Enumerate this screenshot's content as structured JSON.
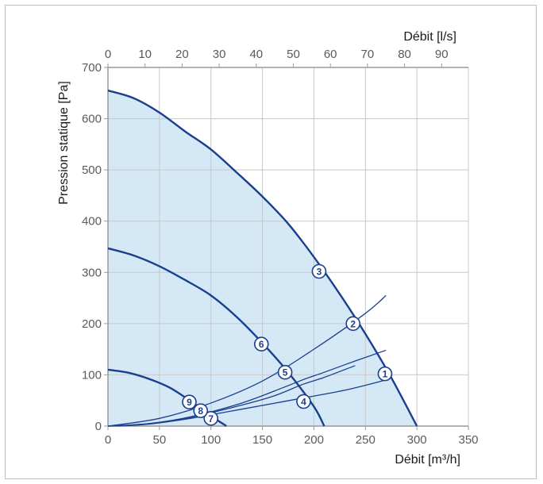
{
  "chart_data": {
    "type": "line",
    "title": "",
    "xlabel": "Débit [m³/h]",
    "x2label": "Débit [l/s]",
    "ylabel": "Pression statique [Pa]",
    "xlim": [
      0,
      350
    ],
    "x2lim": [
      0,
      97.222
    ],
    "ylim": [
      0,
      700
    ],
    "x_ticks": [
      "0",
      "50",
      "100",
      "150",
      "200",
      "250",
      "300",
      "350"
    ],
    "x_tick_values": [
      0,
      50,
      100,
      150,
      200,
      250,
      300,
      350
    ],
    "x2_ticks": [
      "0",
      "10",
      "20",
      "30",
      "40",
      "50",
      "60",
      "70",
      "80",
      "90"
    ],
    "x2_tick_values": [
      0,
      10,
      20,
      30,
      40,
      50,
      60,
      70,
      80,
      90
    ],
    "y_ticks": [
      "0",
      "100",
      "200",
      "300",
      "400",
      "500",
      "600",
      "700"
    ],
    "y_tick_values": [
      0,
      100,
      200,
      300,
      400,
      500,
      600,
      700
    ],
    "grid": true,
    "colors": {
      "curve": "#1b3f8f",
      "fill": "#d4e9f5",
      "grid": "#c8c8c8",
      "axis": "#9a9a9a"
    },
    "fan_curves": [
      {
        "points": [
          [
            0,
            655
          ],
          [
            25,
            640
          ],
          [
            50,
            612
          ],
          [
            75,
            575
          ],
          [
            100,
            540
          ],
          [
            125,
            495
          ],
          [
            150,
            448
          ],
          [
            175,
            395
          ],
          [
            200,
            330
          ],
          [
            225,
            258
          ],
          [
            250,
            180
          ],
          [
            275,
            95
          ],
          [
            300,
            0
          ]
        ]
      },
      {
        "points": [
          [
            0,
            347
          ],
          [
            25,
            333
          ],
          [
            50,
            312
          ],
          [
            75,
            285
          ],
          [
            100,
            255
          ],
          [
            125,
            213
          ],
          [
            150,
            162
          ],
          [
            175,
            105
          ],
          [
            200,
            38
          ],
          [
            210,
            0
          ]
        ]
      },
      {
        "points": [
          [
            0,
            110
          ],
          [
            20,
            104
          ],
          [
            40,
            92
          ],
          [
            60,
            75
          ],
          [
            80,
            49
          ],
          [
            100,
            20
          ],
          [
            115,
            0
          ]
        ]
      }
    ],
    "system_curves": [
      {
        "points": [
          [
            0,
            0
          ],
          [
            50,
            15
          ],
          [
            100,
            45
          ],
          [
            150,
            88
          ],
          [
            200,
            150
          ],
          [
            250,
            220
          ],
          [
            270,
            255
          ]
        ]
      },
      {
        "points": [
          [
            0,
            0
          ],
          [
            40,
            5
          ],
          [
            80,
            18
          ],
          [
            130,
            45
          ],
          [
            170,
            75
          ],
          [
            190,
            91
          ],
          [
            210,
            105
          ],
          [
            240,
            127
          ],
          [
            270,
            148
          ]
        ]
      },
      {
        "points": [
          [
            0,
            0
          ],
          [
            25,
            2
          ],
          [
            50,
            7
          ],
          [
            75,
            15
          ],
          [
            100,
            26
          ],
          [
            130,
            41
          ],
          [
            160,
            58
          ],
          [
            190,
            82
          ],
          [
            210,
            95
          ],
          [
            240,
            118
          ]
        ]
      },
      {
        "points": [
          [
            0,
            0
          ],
          [
            20,
            1
          ],
          [
            40,
            4
          ],
          [
            60,
            9
          ],
          [
            80,
            15
          ],
          [
            100,
            22
          ],
          [
            130,
            33
          ],
          [
            160,
            44
          ],
          [
            190,
            55
          ],
          [
            230,
            70
          ],
          [
            270,
            90
          ]
        ]
      }
    ],
    "points": [
      {
        "label": "1",
        "x": 269,
        "y": 102
      },
      {
        "label": "2",
        "x": 238,
        "y": 200
      },
      {
        "label": "3",
        "x": 205,
        "y": 302
      },
      {
        "label": "4",
        "x": 190,
        "y": 48
      },
      {
        "label": "5",
        "x": 172,
        "y": 105
      },
      {
        "label": "6",
        "x": 149,
        "y": 160
      },
      {
        "label": "7",
        "x": 100,
        "y": 15
      },
      {
        "label": "8",
        "x": 90,
        "y": 30
      },
      {
        "label": "9",
        "x": 79,
        "y": 47
      }
    ],
    "fill_boundary": [
      [
        0,
        655
      ],
      [
        25,
        640
      ],
      [
        50,
        612
      ],
      [
        75,
        575
      ],
      [
        100,
        540
      ],
      [
        125,
        495
      ],
      [
        150,
        448
      ],
      [
        175,
        395
      ],
      [
        200,
        330
      ],
      [
        225,
        258
      ],
      [
        250,
        180
      ],
      [
        275,
        95
      ],
      [
        300,
        0
      ],
      [
        0,
        0
      ]
    ]
  }
}
